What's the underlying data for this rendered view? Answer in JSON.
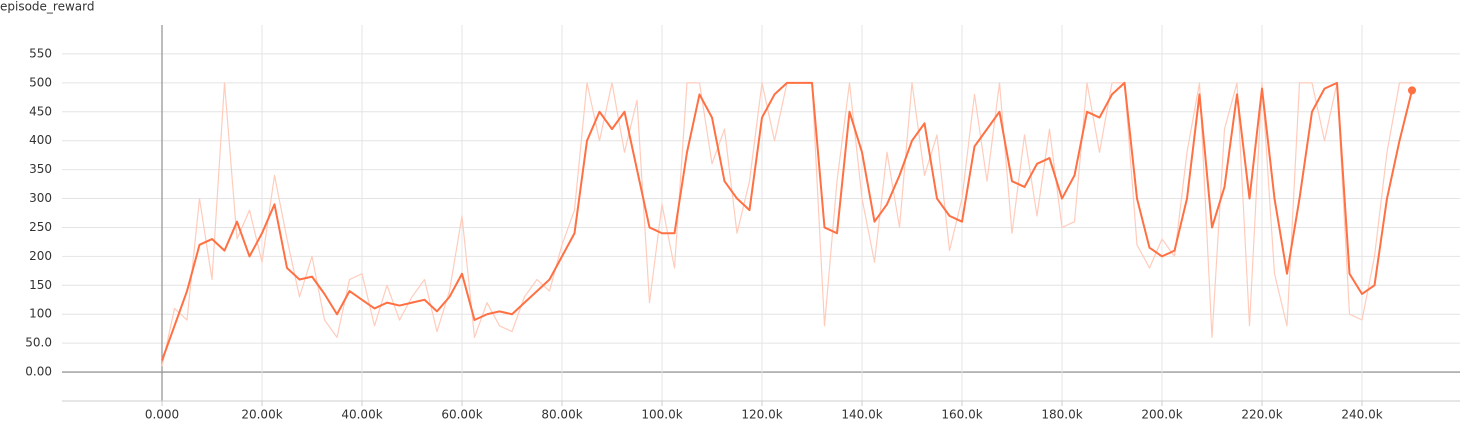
{
  "chart_data": {
    "type": "line",
    "title": "episode_reward",
    "x": [
      0,
      2500,
      5000,
      7500,
      10000,
      12500,
      15000,
      17500,
      20000,
      22500,
      25000,
      27500,
      30000,
      32500,
      35000,
      37500,
      40000,
      42500,
      45000,
      47500,
      50000,
      52500,
      55000,
      57500,
      60000,
      62500,
      65000,
      67500,
      70000,
      72500,
      75000,
      77500,
      80000,
      82500,
      85000,
      87500,
      90000,
      92500,
      95000,
      97500,
      100000,
      102500,
      105000,
      107500,
      110000,
      112500,
      115000,
      117500,
      120000,
      122500,
      125000,
      127500,
      130000,
      132500,
      135000,
      137500,
      140000,
      142500,
      145000,
      147500,
      150000,
      152500,
      155000,
      157500,
      160000,
      162500,
      165000,
      167500,
      170000,
      172500,
      175000,
      177500,
      180000,
      182500,
      185000,
      187500,
      190000,
      192500,
      195000,
      197500,
      200000,
      202500,
      205000,
      207500,
      210000,
      212500,
      215000,
      217500,
      220000,
      222500,
      225000,
      227500,
      230000,
      232500,
      235000,
      237500,
      240000,
      242500,
      245000,
      247500,
      250000
    ],
    "series": [
      {
        "color": "#ff7043",
        "values": [
          20,
          80,
          140,
          220,
          230,
          210,
          260,
          200,
          240,
          290,
          180,
          160,
          165,
          135,
          100,
          140,
          125,
          110,
          120,
          115,
          120,
          125,
          105,
          130,
          170,
          90,
          100,
          105,
          100,
          120,
          140,
          160,
          200,
          240,
          400,
          450,
          420,
          450,
          350,
          250,
          240,
          240,
          380,
          480,
          440,
          330,
          300,
          280,
          440,
          480,
          500,
          500,
          500,
          250,
          240,
          450,
          380,
          260,
          290,
          340,
          400,
          430,
          300,
          270,
          260,
          390,
          420,
          450,
          330,
          320,
          360,
          370,
          300,
          340,
          450,
          440,
          480,
          500,
          300,
          215,
          200,
          210,
          300,
          480,
          250,
          320,
          480,
          300,
          490,
          300,
          170,
          300,
          450,
          490,
          500,
          170,
          135,
          150,
          300,
          400,
          487
        ]
      },
      {
        "color": "#ffccbc",
        "values": [
          10,
          110,
          90,
          300,
          160,
          500,
          230,
          280,
          190,
          340,
          230,
          130,
          200,
          90,
          60,
          160,
          170,
          80,
          150,
          90,
          130,
          160,
          70,
          140,
          270,
          60,
          120,
          80,
          70,
          130,
          160,
          140,
          220,
          280,
          500,
          400,
          500,
          380,
          470,
          120,
          290,
          180,
          500,
          500,
          360,
          420,
          240,
          330,
          500,
          400,
          500,
          500,
          500,
          80,
          330,
          500,
          300,
          190,
          380,
          250,
          500,
          340,
          410,
          210,
          300,
          480,
          330,
          500,
          240,
          410,
          270,
          420,
          250,
          260,
          500,
          380,
          500,
          500,
          220,
          180,
          230,
          200,
          380,
          500,
          60,
          420,
          500,
          80,
          500,
          170,
          80,
          500,
          500,
          400,
          500,
          100,
          90,
          200,
          380,
          500,
          500
        ]
      }
    ],
    "xlim": [
      -20000,
      259600
    ],
    "ylim": [
      -50,
      600
    ],
    "xticks": [
      {
        "value": 0,
        "label": "0.000"
      },
      {
        "value": 20000,
        "label": "20.00k"
      },
      {
        "value": 40000,
        "label": "40.00k"
      },
      {
        "value": 60000,
        "label": "60.00k"
      },
      {
        "value": 80000,
        "label": "80.00k"
      },
      {
        "value": 100000,
        "label": "100.0k"
      },
      {
        "value": 120000,
        "label": "120.0k"
      },
      {
        "value": 140000,
        "label": "140.0k"
      },
      {
        "value": 160000,
        "label": "160.0k"
      },
      {
        "value": 180000,
        "label": "180.0k"
      },
      {
        "value": 200000,
        "label": "200.0k"
      },
      {
        "value": 220000,
        "label": "220.0k"
      },
      {
        "value": 240000,
        "label": "240.0k"
      }
    ],
    "yticks": [
      {
        "value": 0,
        "label": "0.00"
      },
      {
        "value": 50,
        "label": "50.0"
      },
      100,
      150,
      200,
      250,
      300,
      350,
      400,
      450,
      500,
      550
    ],
    "grid": true
  }
}
